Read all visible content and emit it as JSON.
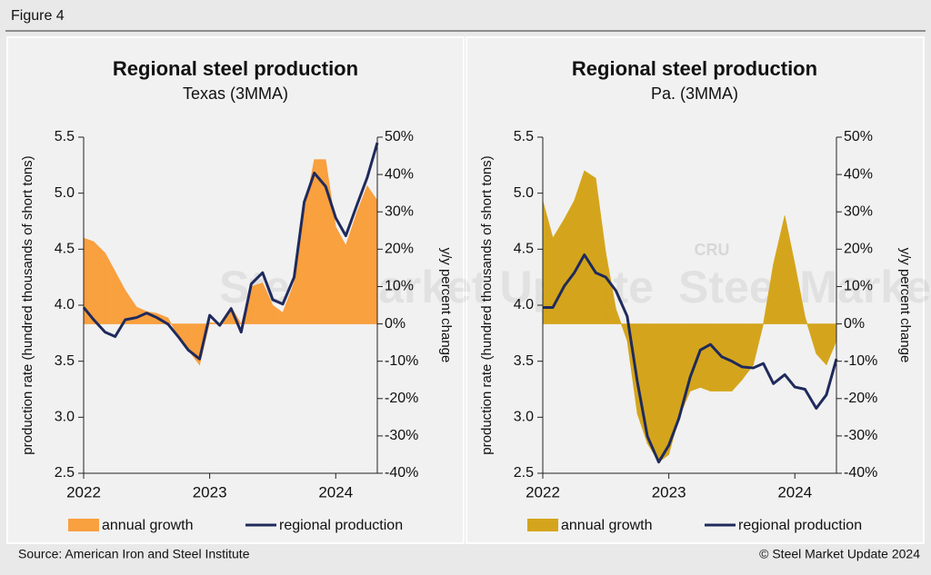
{
  "figure_label": "Figure 4",
  "source": "Source: American Iron and Steel Institute",
  "copyright": "© Steel Market Update 2024",
  "watermark": {
    "text": "Steel Market Update",
    "logo": "CRU"
  },
  "chart_data": [
    {
      "type": "combo",
      "title": "Regional steel production",
      "subtitle": "Texas (3MMA)",
      "y_label": "production rate (hundred thousands of short tons)",
      "y2_label": "y/y percent change",
      "x": [
        2022.0,
        2022.08,
        2022.17,
        2022.25,
        2022.33,
        2022.42,
        2022.5,
        2022.58,
        2022.67,
        2022.75,
        2022.83,
        2022.92,
        2023.0,
        2023.08,
        2023.17,
        2023.25,
        2023.33,
        2023.42,
        2023.5,
        2023.58,
        2023.67,
        2023.75,
        2023.83,
        2023.92,
        2024.0,
        2024.08,
        2024.17,
        2024.25,
        2024.33
      ],
      "xlim": [
        2022,
        2024.33
      ],
      "xticks": [
        2022,
        2023,
        2024
      ],
      "ylim": [
        2.5,
        5.5
      ],
      "yticks": [
        2.5,
        {
          "value": 3,
          "label": "3.0"
        },
        3.5,
        {
          "value": 4,
          "label": "4.0"
        },
        4.5,
        {
          "value": 5,
          "label": "5.0"
        },
        5.5
      ],
      "y2lim": [
        -40,
        50
      ],
      "y2ticks": [
        {
          "value": -40,
          "label": "-40%"
        },
        {
          "value": -30,
          "label": "-30%"
        },
        {
          "value": -20,
          "label": "-20%"
        },
        {
          "value": -10,
          "label": "-10%"
        },
        {
          "value": 0,
          "label": "0%"
        },
        {
          "value": 10,
          "label": "10%"
        },
        {
          "value": 20,
          "label": "20%"
        },
        {
          "value": 30,
          "label": "30%"
        },
        {
          "value": 40,
          "label": "40%"
        },
        {
          "value": 50,
          "label": "50%"
        }
      ],
      "series": [
        {
          "name": "annual growth",
          "style": "area",
          "axis": "y2",
          "color": "#f9a03f",
          "values": [
            23,
            22,
            19,
            14,
            9,
            4.5,
            3.3,
            2.8,
            1.6,
            -3.3,
            -7,
            -11,
            0.4,
            0,
            4.5,
            0,
            10,
            11,
            5,
            3,
            11,
            30,
            44,
            44,
            26,
            21,
            30,
            37,
            33
          ]
        },
        {
          "name": "regional production",
          "style": "line",
          "color": "#1f2a5c",
          "values": [
            3.98,
            3.87,
            3.76,
            3.72,
            3.87,
            3.89,
            3.93,
            3.89,
            3.83,
            3.72,
            3.6,
            3.52,
            3.91,
            3.82,
            3.97,
            3.76,
            4.19,
            4.29,
            4.05,
            4.01,
            4.25,
            4.92,
            5.18,
            5.06,
            4.78,
            4.62,
            4.9,
            5.14,
            5.45
          ]
        }
      ]
    },
    {
      "type": "combo",
      "title": "Regional steel production",
      "subtitle": "Pa. (3MMA)",
      "y_label": "production rate (hundred thousands of short tons)",
      "y2_label": "y/y percent change",
      "x": [
        2022.0,
        2022.08,
        2022.17,
        2022.25,
        2022.33,
        2022.42,
        2022.5,
        2022.58,
        2022.67,
        2022.75,
        2022.83,
        2022.92,
        2023.0,
        2023.08,
        2023.17,
        2023.25,
        2023.33,
        2023.42,
        2023.5,
        2023.58,
        2023.67,
        2023.75,
        2023.83,
        2023.92,
        2024.0,
        2024.08,
        2024.17,
        2024.25,
        2024.33
      ],
      "xlim": [
        2022,
        2024.33
      ],
      "xticks": [
        2022,
        2023,
        2024
      ],
      "ylim": [
        2.5,
        5.5
      ],
      "yticks": [
        2.5,
        {
          "value": 3,
          "label": "3.0"
        },
        3.5,
        {
          "value": 4,
          "label": "4.0"
        },
        4.5,
        {
          "value": 5,
          "label": "5.0"
        },
        5.5
      ],
      "y2lim": [
        -40,
        50
      ],
      "y2ticks": [
        {
          "value": -40,
          "label": "-40%"
        },
        {
          "value": -30,
          "label": "-30%"
        },
        {
          "value": -20,
          "label": "-20%"
        },
        {
          "value": -10,
          "label": "-10%"
        },
        {
          "value": 0,
          "label": "0%"
        },
        {
          "value": 10,
          "label": "10%"
        },
        {
          "value": 20,
          "label": "20%"
        },
        {
          "value": 30,
          "label": "30%"
        },
        {
          "value": 40,
          "label": "40%"
        },
        {
          "value": 50,
          "label": "50%"
        }
      ],
      "series": [
        {
          "name": "annual growth",
          "style": "area",
          "axis": "y2",
          "color": "#d4a51c",
          "values": [
            33,
            23,
            28,
            33,
            41,
            39,
            19,
            4,
            -4.5,
            -24,
            -32,
            -37,
            -35,
            -25,
            -18,
            -17,
            -18,
            -18,
            -18,
            -15,
            -11,
            0,
            16,
            29,
            16,
            2,
            -8,
            -11,
            -4.5
          ]
        },
        {
          "name": "regional production",
          "style": "line",
          "color": "#1f2a5c",
          "values": [
            3.98,
            3.98,
            4.17,
            4.29,
            4.45,
            4.29,
            4.25,
            4.13,
            3.9,
            3.32,
            2.83,
            2.6,
            2.75,
            2.99,
            3.36,
            3.6,
            3.65,
            3.54,
            3.5,
            3.45,
            3.44,
            3.48,
            3.3,
            3.38,
            3.27,
            3.25,
            3.08,
            3.2,
            3.52
          ]
        }
      ]
    }
  ]
}
